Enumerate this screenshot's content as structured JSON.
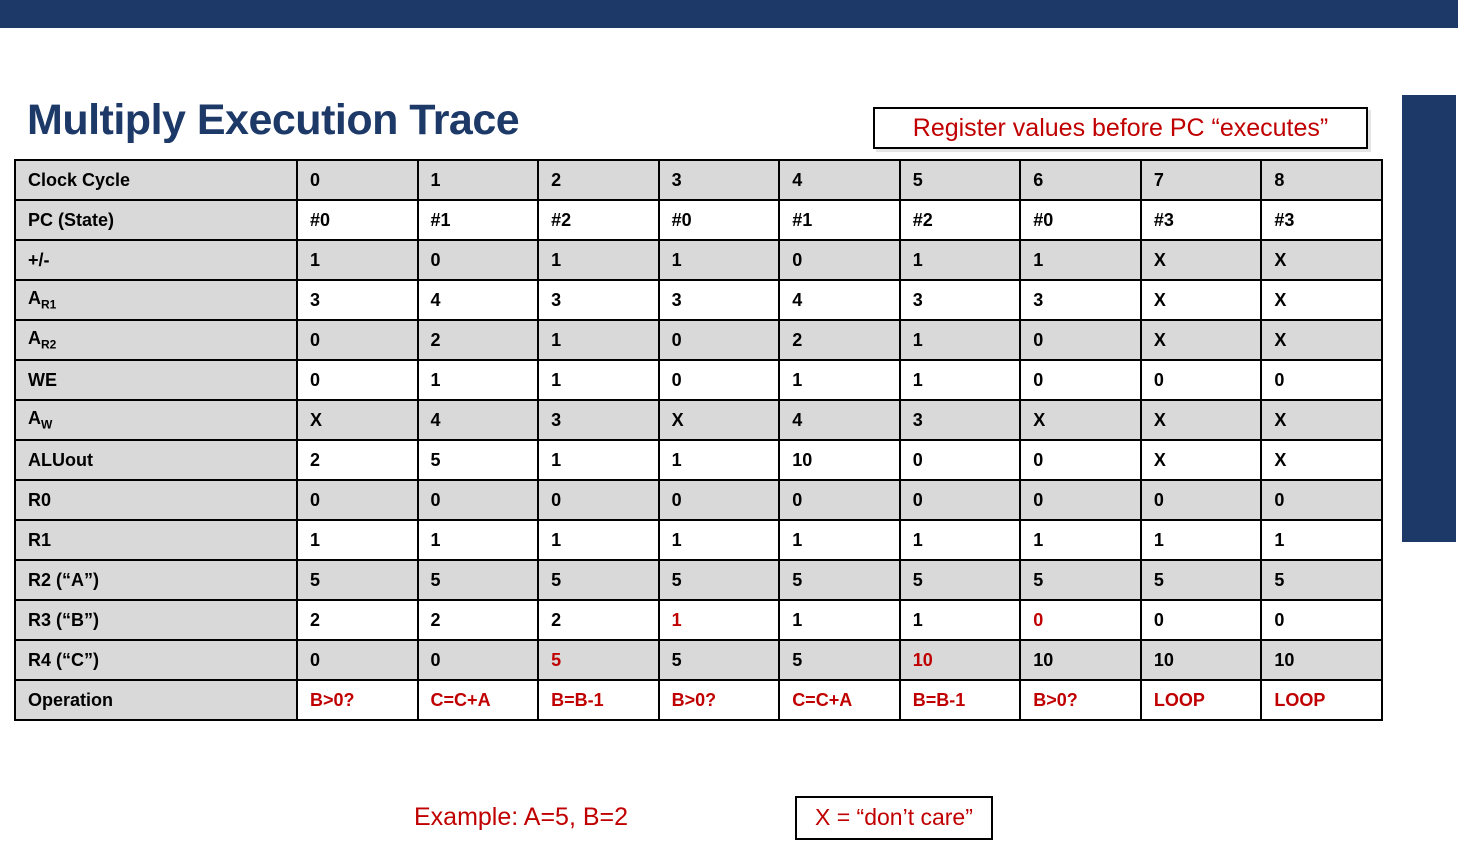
{
  "title": "Multiply Execution Trace",
  "callout_top": "Register values before PC “executes”",
  "table": {
    "rows": [
      {
        "label": "Clock Cycle",
        "sub": "",
        "cells": [
          "0",
          "1",
          "2",
          "3",
          "4",
          "5",
          "6",
          "7",
          "8"
        ],
        "red": []
      },
      {
        "label": "PC (State)",
        "sub": "",
        "cells": [
          "#0",
          "#1",
          "#2",
          "#0",
          "#1",
          "#2",
          "#0",
          "#3",
          "#3"
        ],
        "red": []
      },
      {
        "label": "+/-",
        "sub": "",
        "cells": [
          "1",
          "0",
          "1",
          "1",
          "0",
          "1",
          "1",
          "X",
          "X"
        ],
        "red": []
      },
      {
        "label": "A",
        "sub": "R1",
        "cells": [
          "3",
          "4",
          "3",
          "3",
          "4",
          "3",
          "3",
          "X",
          "X"
        ],
        "red": []
      },
      {
        "label": "A",
        "sub": "R2",
        "cells": [
          "0",
          "2",
          "1",
          "0",
          "2",
          "1",
          "0",
          "X",
          "X"
        ],
        "red": []
      },
      {
        "label": "WE",
        "sub": "",
        "cells": [
          "0",
          "1",
          "1",
          "0",
          "1",
          "1",
          "0",
          "0",
          "0"
        ],
        "red": []
      },
      {
        "label": "A",
        "sub": "W",
        "cells": [
          "X",
          "4",
          "3",
          "X",
          "4",
          "3",
          "X",
          "X",
          "X"
        ],
        "red": []
      },
      {
        "label": "ALUout",
        "sub": "",
        "cells": [
          "2",
          "5",
          "1",
          "1",
          "10",
          "0",
          "0",
          "X",
          "X"
        ],
        "red": []
      },
      {
        "label": "R0",
        "sub": "",
        "cells": [
          "0",
          "0",
          "0",
          "0",
          "0",
          "0",
          "0",
          "0",
          "0"
        ],
        "red": []
      },
      {
        "label": "R1",
        "sub": "",
        "cells": [
          "1",
          "1",
          "1",
          "1",
          "1",
          "1",
          "1",
          "1",
          "1"
        ],
        "red": []
      },
      {
        "label": "R2 (“A”)",
        "sub": "",
        "cells": [
          "5",
          "5",
          "5",
          "5",
          "5",
          "5",
          "5",
          "5",
          "5"
        ],
        "red": []
      },
      {
        "label": "R3 (“B”)",
        "sub": "",
        "cells": [
          "2",
          "2",
          "2",
          "1",
          "1",
          "1",
          "0",
          "0",
          "0"
        ],
        "red": [
          3,
          6
        ]
      },
      {
        "label": "R4 (“C”)",
        "sub": "",
        "cells": [
          "0",
          "0",
          "5",
          "5",
          "5",
          "10",
          "10",
          "10",
          "10"
        ],
        "red": [
          2,
          5
        ]
      },
      {
        "label": "Operation",
        "sub": "",
        "cells": [
          "B>0?",
          "C=C+A",
          "B=B-1",
          "B>0?",
          "C=C+A",
          "B=B-1",
          "B>0?",
          "LOOP",
          "LOOP"
        ],
        "red": [
          0,
          1,
          2,
          3,
          4,
          5,
          6,
          7,
          8
        ]
      }
    ]
  },
  "footer": {
    "example": "Example: A=5, B=2",
    "dont_care": "X = “don’t care”"
  },
  "colors": {
    "navy": "#1c3968",
    "red": "#c00000",
    "band_gray": "#d9d9d9"
  }
}
